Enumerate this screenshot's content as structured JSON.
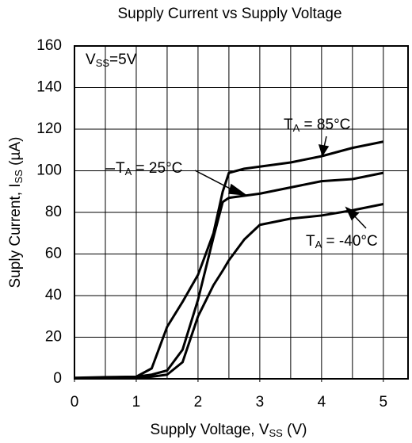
{
  "chart_data": {
    "type": "line",
    "title": "Supply Current vs Supply Voltage",
    "x_label": [
      "Supply Voltage, V",
      "SS",
      " (V)"
    ],
    "y_label": [
      "Suply Current, I",
      "SS",
      " (µA)"
    ],
    "x": [
      0,
      0.5,
      1,
      1.25,
      1.5,
      1.75,
      2,
      2.25,
      2.4,
      2.5,
      2.75,
      3,
      3.5,
      4,
      4.5,
      5
    ],
    "series": [
      {
        "name": "85°C",
        "color": "#000000",
        "values": [
          0.5,
          0.8,
          1,
          5,
          25,
          37,
          50,
          70,
          90,
          99,
          101,
          102,
          104,
          107,
          111,
          114
        ]
      },
      {
        "name": "25°C",
        "color": "#000000",
        "values": [
          0.3,
          0.6,
          1,
          2,
          4,
          14,
          38,
          68,
          85,
          87,
          88,
          89,
          92,
          95,
          96,
          99
        ]
      },
      {
        "name": "-40°C",
        "color": "#000000",
        "values": [
          0.2,
          0.4,
          0.5,
          1,
          2,
          8,
          30,
          45,
          52,
          57,
          67,
          74,
          77,
          78.5,
          81,
          84
        ]
      }
    ],
    "annotations": [
      [
        "V",
        "SS",
        "=5V"
      ],
      [
        "T",
        "A",
        " = 85°C"
      ],
      [
        "T",
        "A",
        " = 25°C"
      ],
      [
        "T",
        "A",
        " = -40°C"
      ]
    ],
    "xlim": [
      0,
      5.4
    ],
    "ylim": [
      0,
      160
    ],
    "xticks": [
      0,
      1,
      2,
      3,
      4,
      5
    ],
    "yticks": [
      0,
      20,
      40,
      60,
      80,
      100,
      120,
      140,
      160
    ],
    "x_gridlines": [
      0.5,
      1,
      1.5,
      2,
      2.5,
      3,
      3.5,
      4,
      4.5,
      5
    ],
    "grid": true
  }
}
